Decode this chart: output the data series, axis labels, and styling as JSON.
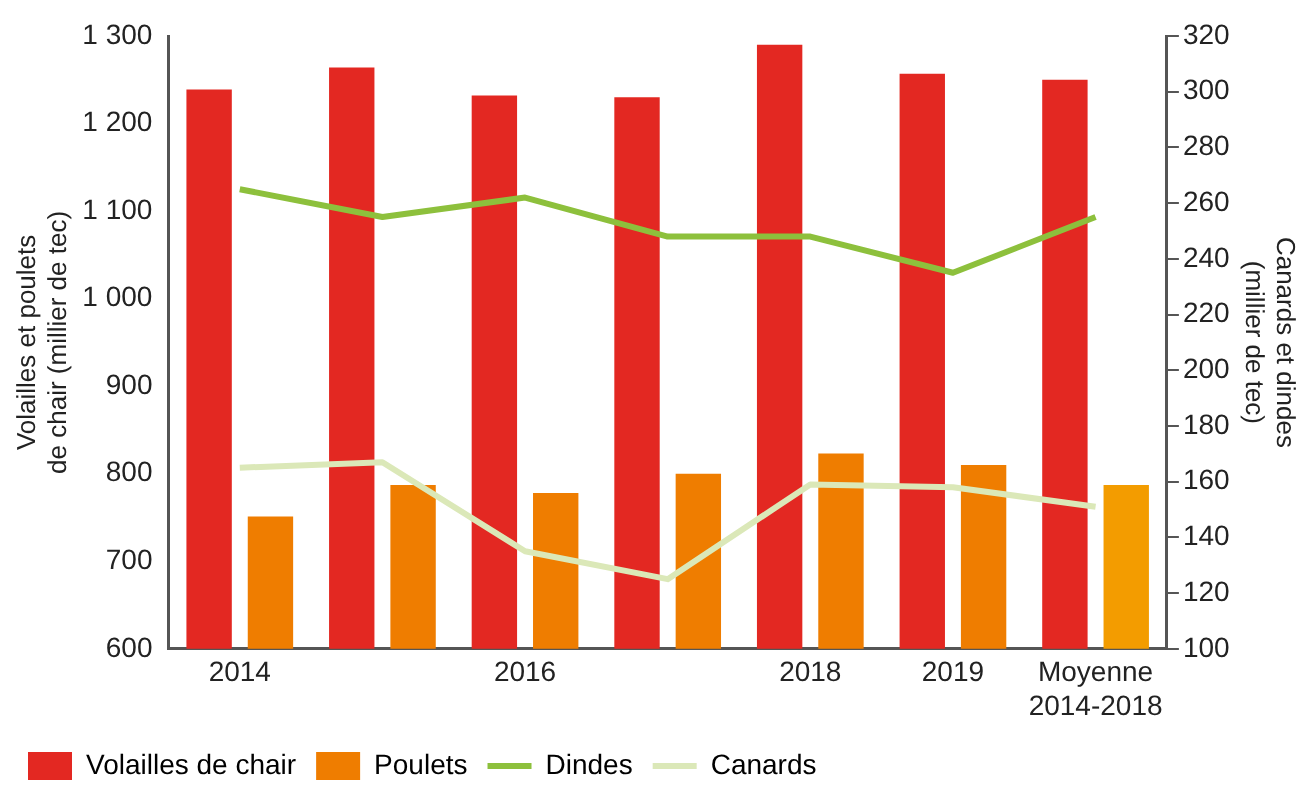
{
  "chart_data": {
    "type": "bar",
    "categories": [
      "2014",
      null,
      "2016",
      null,
      "2018",
      "2019",
      "Moyenne\n2014-2018"
    ],
    "ylabel": "Volailles et poulets\nde chair (millier de tec)",
    "y2label": "Canards et dindes\n(millier de tec)",
    "ylim": [
      600,
      1300
    ],
    "yticks": [
      600,
      700,
      800,
      900,
      {
        "value": 1000,
        "label": "1 000"
      },
      {
        "value": 1100,
        "label": "1 100"
      },
      {
        "value": 1200,
        "label": "1 200"
      },
      {
        "value": 1300,
        "label": "1 300"
      }
    ],
    "y2lim": [
      100,
      320
    ],
    "y2ticks": [
      100,
      120,
      140,
      160,
      180,
      200,
      220,
      240,
      260,
      280,
      300,
      320
    ],
    "grid": false,
    "legend": "bottom",
    "series": [
      {
        "name": "Volailles de chair",
        "color": "#e32822",
        "values": [
          1239,
          1264,
          1232,
          1230,
          1290,
          1257,
          1250
        ]
      },
      {
        "name": "Poulets",
        "color": "#ef7d00",
        "colors": [
          "#ef7d00",
          "#ef7d00",
          "#ef7d00",
          "#ef7d00",
          "#ef7d00",
          "#ef7d00",
          "#f39c00"
        ],
        "values": [
          751,
          787,
          778,
          800,
          823,
          810,
          787
        ]
      },
      {
        "name": "Dindes",
        "type": "line",
        "axis": "y2",
        "color": "#8dc03c",
        "values": [
          265,
          255,
          262,
          248,
          248,
          235,
          255
        ]
      },
      {
        "name": "Canards",
        "type": "line",
        "axis": "y2",
        "color": "#dbe8b8",
        "values": [
          165,
          167,
          135,
          125,
          159,
          158,
          151
        ]
      }
    ]
  }
}
